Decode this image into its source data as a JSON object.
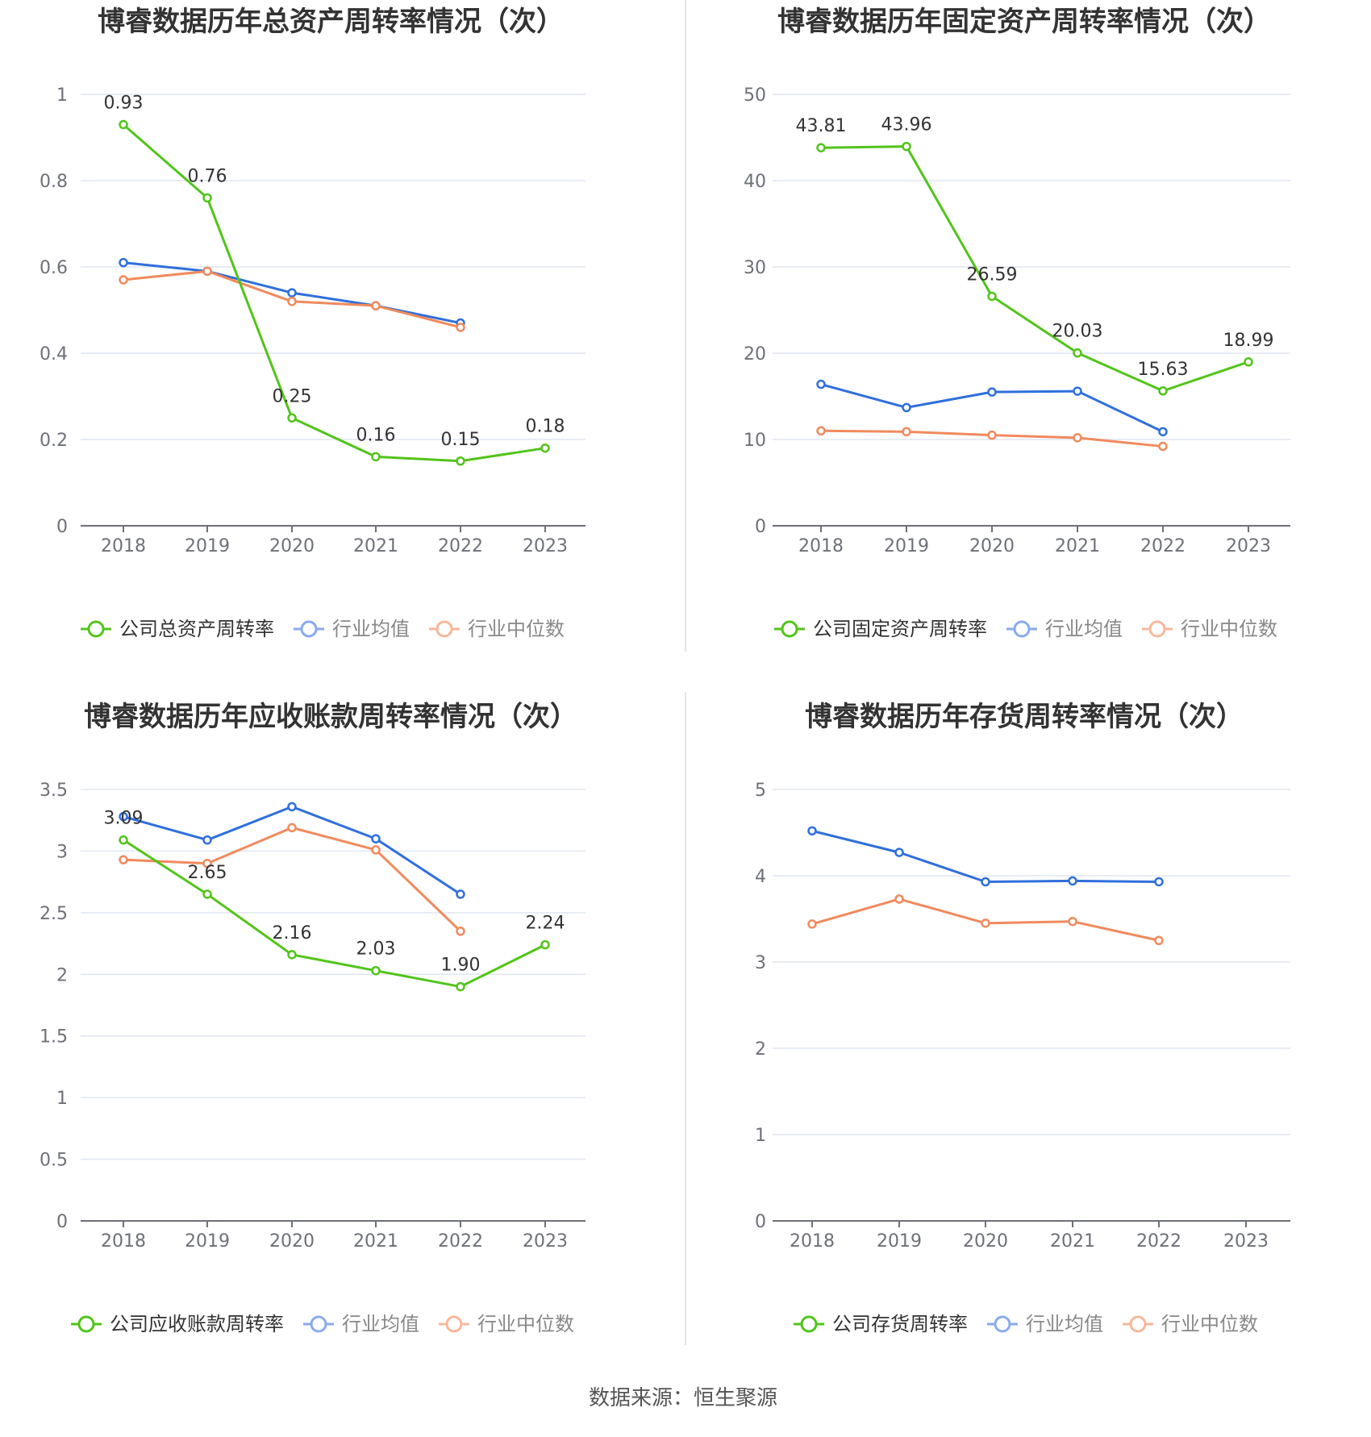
{
  "source": "数据来源：恒生聚源",
  "colors": {
    "company": "#52c41a",
    "avg": "#2f6fdc",
    "median": "#f08a5d",
    "legend_avg": "#8aaaf0",
    "legend_median": "#f8b79a"
  },
  "chart_data": [
    {
      "type": "line",
      "title": "博睿数据历年总资产周转率情况（次）",
      "categories": [
        "2018",
        "2019",
        "2020",
        "2021",
        "2022",
        "2023"
      ],
      "ylim": [
        0,
        1
      ],
      "yticks": [
        "0",
        "0.2",
        "0.4",
        "0.6",
        "0.8",
        "1"
      ],
      "ytick_values": [
        0,
        0.2,
        0.4,
        0.6,
        0.8,
        1
      ],
      "series": [
        {
          "name": "公司总资产周转率",
          "key": "company",
          "values": [
            0.93,
            0.76,
            0.25,
            0.16,
            0.15,
            0.18
          ],
          "labels": [
            "0.93",
            "0.76",
            "0.25",
            "0.16",
            "0.15",
            "0.18"
          ]
        },
        {
          "name": "行业均值",
          "key": "avg",
          "values": [
            0.61,
            0.59,
            0.54,
            0.51,
            0.47,
            null
          ]
        },
        {
          "name": "行业中位数",
          "key": "median",
          "values": [
            0.57,
            0.59,
            0.52,
            0.51,
            0.46,
            null
          ]
        }
      ]
    },
    {
      "type": "line",
      "title": "博睿数据历年固定资产周转率情况（次）",
      "categories": [
        "2018",
        "2019",
        "2020",
        "2021",
        "2022",
        "2023"
      ],
      "ylim": [
        0,
        50
      ],
      "yticks": [
        "0",
        "10",
        "20",
        "30",
        "40",
        "50"
      ],
      "ytick_values": [
        0,
        10,
        20,
        30,
        40,
        50
      ],
      "series": [
        {
          "name": "公司固定资产周转率",
          "key": "company",
          "values": [
            43.81,
            43.96,
            26.59,
            20.03,
            15.63,
            18.99
          ],
          "labels": [
            "43.81",
            "43.96",
            "26.59",
            "20.03",
            "15.63",
            "18.99"
          ]
        },
        {
          "name": "行业均值",
          "key": "avg",
          "values": [
            16.4,
            13.7,
            15.5,
            15.6,
            10.9,
            null
          ]
        },
        {
          "name": "行业中位数",
          "key": "median",
          "values": [
            11.0,
            10.9,
            10.5,
            10.2,
            9.2,
            null
          ]
        }
      ]
    },
    {
      "type": "line",
      "title": "博睿数据历年应收账款周转率情况（次）",
      "categories": [
        "2018",
        "2019",
        "2020",
        "2021",
        "2022",
        "2023"
      ],
      "ylim": [
        0,
        3.5
      ],
      "yticks": [
        "0",
        "0.5",
        "1",
        "1.5",
        "2",
        "2.5",
        "3",
        "3.5"
      ],
      "ytick_values": [
        0,
        0.5,
        1,
        1.5,
        2,
        2.5,
        3,
        3.5
      ],
      "series": [
        {
          "name": "公司应收账款周转率",
          "key": "company",
          "values": [
            3.09,
            2.65,
            2.16,
            2.03,
            1.9,
            2.24
          ],
          "labels": [
            "3.09",
            "2.65",
            "2.16",
            "2.03",
            "1.90",
            "2.24"
          ]
        },
        {
          "name": "行业均值",
          "key": "avg",
          "values": [
            3.28,
            3.09,
            3.36,
            3.1,
            2.65,
            null
          ]
        },
        {
          "name": "行业中位数",
          "key": "median",
          "values": [
            2.93,
            2.9,
            3.19,
            3.01,
            2.35,
            null
          ]
        }
      ]
    },
    {
      "type": "line",
      "title": "博睿数据历年存货周转率情况（次）",
      "categories": [
        "2018",
        "2019",
        "2020",
        "2021",
        "2022",
        "2023"
      ],
      "ylim": [
        0,
        5
      ],
      "yticks": [
        "0",
        "1",
        "2",
        "3",
        "4",
        "5"
      ],
      "ytick_values": [
        0,
        1,
        2,
        3,
        4,
        5
      ],
      "series": [
        {
          "name": "公司存货周转率",
          "key": "company",
          "values": [
            null,
            null,
            null,
            null,
            null,
            null
          ],
          "labels": []
        },
        {
          "name": "行业均值",
          "key": "avg",
          "values": [
            4.52,
            4.27,
            3.93,
            3.94,
            3.93,
            null
          ]
        },
        {
          "name": "行业中位数",
          "key": "median",
          "values": [
            3.44,
            3.73,
            3.45,
            3.47,
            3.25,
            null
          ]
        }
      ]
    }
  ]
}
